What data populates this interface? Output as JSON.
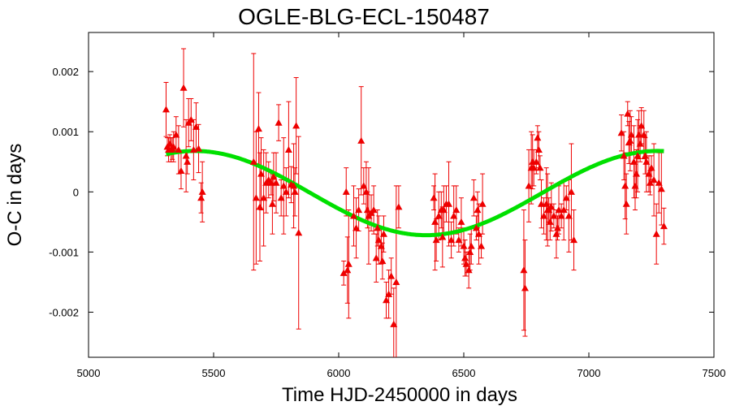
{
  "chart_data": {
    "type": "scatter",
    "title": "OGLE-BLG-ECL-150487",
    "xlabel": "Time HJD-2450000 in days",
    "ylabel": "O-C in days",
    "xlim": [
      5000,
      7500
    ],
    "ylim": [
      -0.00275,
      0.00265
    ],
    "xticks": [
      5000,
      5500,
      6000,
      6500,
      7000,
      7500
    ],
    "xtick_labels": [
      "5000",
      "5500",
      "6000",
      "6500",
      "7000",
      "7500"
    ],
    "yticks": [
      -0.002,
      -0.001,
      0,
      0.001,
      0.002
    ],
    "ytick_labels": [
      "-0.002",
      "-0.001",
      "0",
      "0.001",
      "0.002"
    ],
    "grid": false,
    "colors": {
      "points": "#ee0000",
      "fit": "#00e000"
    },
    "series": [
      {
        "type": "scatter-errorbar",
        "points": [
          [
            5310,
            0.00137,
            0.00045
          ],
          [
            5315,
            0.00075,
            0.00015
          ],
          [
            5320,
            0.0007,
            0.0002
          ],
          [
            5325,
            0.0008,
            0.00015
          ],
          [
            5330,
            0.0007,
            0.0002
          ],
          [
            5335,
            0.00072,
            0.00018
          ],
          [
            5340,
            0.00075,
            0.00025
          ],
          [
            5350,
            0.00095,
            0.0003
          ],
          [
            5360,
            0.0007,
            0.0004
          ],
          [
            5370,
            0.00035,
            0.0003
          ],
          [
            5380,
            0.00173,
            0.00065
          ],
          [
            5390,
            0.0006,
            0.0006
          ],
          [
            5395,
            0.0005,
            0.0002
          ],
          [
            5400,
            0.00115,
            0.0004
          ],
          [
            5410,
            0.0012,
            0.00035
          ],
          [
            5420,
            0.0007,
            0.0005
          ],
          [
            5430,
            0.00108,
            0.0004
          ],
          [
            5440,
            0.00072,
            0.0004
          ],
          [
            5450,
            -0.0001,
            0.00025
          ],
          [
            5455,
            0.0,
            0.0005
          ],
          [
            5660,
            0.0005,
            0.0018
          ],
          [
            5670,
            -0.0001,
            0.0011
          ],
          [
            5680,
            0.00105,
            0.0006
          ],
          [
            5685,
            -0.00025,
            0.0009
          ],
          [
            5690,
            0.0003,
            0.0006
          ],
          [
            5700,
            -0.0001,
            0.0008
          ],
          [
            5710,
            0.00015,
            0.0005
          ],
          [
            5720,
            0.0002,
            0.0003
          ],
          [
            5730,
            0.00015,
            0.0002
          ],
          [
            5735,
            -0.0002,
            0.0005
          ],
          [
            5740,
            0.00025,
            0.0004
          ],
          [
            5750,
            0.00015,
            0.0005
          ],
          [
            5760,
            0.00115,
            0.0003
          ],
          [
            5770,
            -0.0001,
            0.0003
          ],
          [
            5780,
            0.0001,
            0.0008
          ],
          [
            5790,
            0.0,
            0.0004
          ],
          [
            5800,
            0.0007,
            0.0008
          ],
          [
            5810,
            0.00012,
            0.0003
          ],
          [
            5820,
            0.0001,
            0.0007
          ],
          [
            5825,
            0.0,
            0.0004
          ],
          [
            5830,
            0.0011,
            0.0008
          ],
          [
            5840,
            -0.00068,
            0.0016
          ],
          [
            6020,
            -0.00135,
            0.0002
          ],
          [
            6030,
            0.0,
            0.0004
          ],
          [
            6035,
            -0.0013,
            0.00055
          ],
          [
            6040,
            -0.0012,
            0.0009
          ],
          [
            6060,
            -0.0004,
            0.0005
          ],
          [
            6070,
            -0.0006,
            0.0005
          ],
          [
            6080,
            -0.0003,
            0.00035
          ],
          [
            6090,
            0.00085,
            0.0009
          ],
          [
            6100,
            0.0001,
            0.0003
          ],
          [
            6110,
            0.0,
            0.0005
          ],
          [
            6115,
            -0.0003,
            0.0003
          ],
          [
            6120,
            -0.0004,
            0.0008
          ],
          [
            6130,
            -0.00035,
            0.0003
          ],
          [
            6140,
            -0.0003,
            0.0004
          ],
          [
            6150,
            -0.0011,
            0.0004
          ],
          [
            6155,
            -0.0006,
            0.0003
          ],
          [
            6160,
            -0.0008,
            0.0004
          ],
          [
            6170,
            -0.0009,
            0.0003
          ],
          [
            6175,
            -0.00115,
            0.0003
          ],
          [
            6180,
            -0.0007,
            0.0003
          ],
          [
            6190,
            -0.0018,
            0.0003
          ],
          [
            6200,
            -0.0017,
            0.0004
          ],
          [
            6210,
            -0.0014,
            0.0003
          ],
          [
            6220,
            -0.0022,
            0.0006
          ],
          [
            6230,
            -0.0015,
            0.0016
          ],
          [
            6240,
            -0.00025,
            0.00035
          ],
          [
            6380,
            -0.0001,
            0.0002
          ],
          [
            6385,
            -0.0005,
            0.0008
          ],
          [
            6390,
            -0.0008,
            0.00035
          ],
          [
            6400,
            -0.0004,
            0.0004
          ],
          [
            6410,
            -0.0003,
            0.0003
          ],
          [
            6415,
            -0.00075,
            0.0005
          ],
          [
            6420,
            -0.0003,
            0.0004
          ],
          [
            6430,
            -0.0002,
            0.0003
          ],
          [
            6440,
            -0.0002,
            0.0007
          ],
          [
            6450,
            -0.0008,
            0.0003
          ],
          [
            6460,
            -0.0004,
            0.0005
          ],
          [
            6470,
            -0.0003,
            0.0004
          ],
          [
            6480,
            -0.0008,
            0.0002
          ],
          [
            6490,
            -0.0005,
            0.0004
          ],
          [
            6500,
            -0.0009,
            0.0003
          ],
          [
            6505,
            -0.0011,
            0.0003
          ],
          [
            6510,
            -0.0012,
            0.0002
          ],
          [
            6520,
            -0.0013,
            0.0003
          ],
          [
            6525,
            -0.001,
            0.0003
          ],
          [
            6530,
            -0.0009,
            0.0003
          ],
          [
            6540,
            -0.0001,
            0.0003
          ],
          [
            6550,
            -0.0006,
            0.0002
          ],
          [
            6555,
            -0.0003,
            0.0003
          ],
          [
            6560,
            -0.0007,
            0.0005
          ],
          [
            6570,
            -0.0009,
            0.0002
          ],
          [
            6575,
            -0.0002,
            0.0005
          ],
          [
            6740,
            -0.0013,
            0.001
          ],
          [
            6745,
            -0.0016,
            0.0008
          ],
          [
            6760,
            0.0001,
            0.0006
          ],
          [
            6770,
            0.0004,
            0.0006
          ],
          [
            6775,
            0.0005,
            0.00045
          ],
          [
            6780,
            0.0004,
            0.0003
          ],
          [
            6790,
            0.0005,
            0.0002
          ],
          [
            6795,
            0.0009,
            0.0002
          ],
          [
            6800,
            0.0007,
            0.0003
          ],
          [
            6805,
            0.0004,
            0.0002
          ],
          [
            6810,
            -0.0002,
            0.0004
          ],
          [
            6820,
            -0.0004,
            0.0003
          ],
          [
            6830,
            -0.0002,
            0.0006
          ],
          [
            6835,
            -0.0003,
            0.0006
          ],
          [
            6840,
            -0.0003,
            0.0002
          ],
          [
            6845,
            -0.0005,
            0.0003
          ],
          [
            6850,
            -0.00025,
            0.0004
          ],
          [
            6860,
            -0.0004,
            0.0002
          ],
          [
            6870,
            -0.0007,
            0.0004
          ],
          [
            6875,
            -0.0006,
            0.0002
          ],
          [
            6880,
            -0.0003,
            0.0004
          ],
          [
            6890,
            -0.0004,
            0.0002
          ],
          [
            6900,
            -0.0003,
            0.0005
          ],
          [
            6910,
            -0.0001,
            0.0002
          ],
          [
            6920,
            -0.0004,
            0.0006
          ],
          [
            6930,
            0.0,
            0.0008
          ],
          [
            6940,
            -0.0008,
            0.0005
          ],
          [
            7130,
            0.00098,
            0.0003
          ],
          [
            7140,
            0.0006,
            0.0004
          ],
          [
            7145,
            0.0001,
            0.00055
          ],
          [
            7150,
            -0.0002,
            0.0005
          ],
          [
            7155,
            0.0013,
            0.0002
          ],
          [
            7160,
            0.00082,
            0.00035
          ],
          [
            7165,
            0.00085,
            0.0005
          ],
          [
            7170,
            0.00095,
            0.0003
          ],
          [
            7180,
            0.0005,
            0.0006
          ],
          [
            7185,
            0.0001,
            0.0004
          ],
          [
            7190,
            0.0003,
            0.0004
          ],
          [
            7195,
            0.0006,
            0.0006
          ],
          [
            7200,
            0.00095,
            0.0004
          ],
          [
            7205,
            0.0008,
            0.0003
          ],
          [
            7210,
            0.0011,
            0.0003
          ],
          [
            7220,
            0.00095,
            0.0004
          ],
          [
            7225,
            0.0006,
            0.0003
          ],
          [
            7230,
            0.0005,
            0.0005
          ],
          [
            7240,
            0.0003,
            0.0003
          ],
          [
            7245,
            0.00015,
            0.0002
          ],
          [
            7250,
            0.0004,
            0.0002
          ],
          [
            7260,
            0.0002,
            0.0006
          ],
          [
            7270,
            -0.0007,
            0.0005
          ],
          [
            7280,
            0.00015,
            0.0005
          ],
          [
            7290,
            5e-05,
            0.0006
          ],
          [
            7300,
            -0.00057,
            0.0003
          ]
        ]
      },
      {
        "type": "line",
        "function": "sinusoid",
        "x_range": [
          5310,
          7300
        ],
        "center": -2e-05,
        "amplitude": 0.0007,
        "period": 1850,
        "phase_x": 6350
      }
    ]
  }
}
